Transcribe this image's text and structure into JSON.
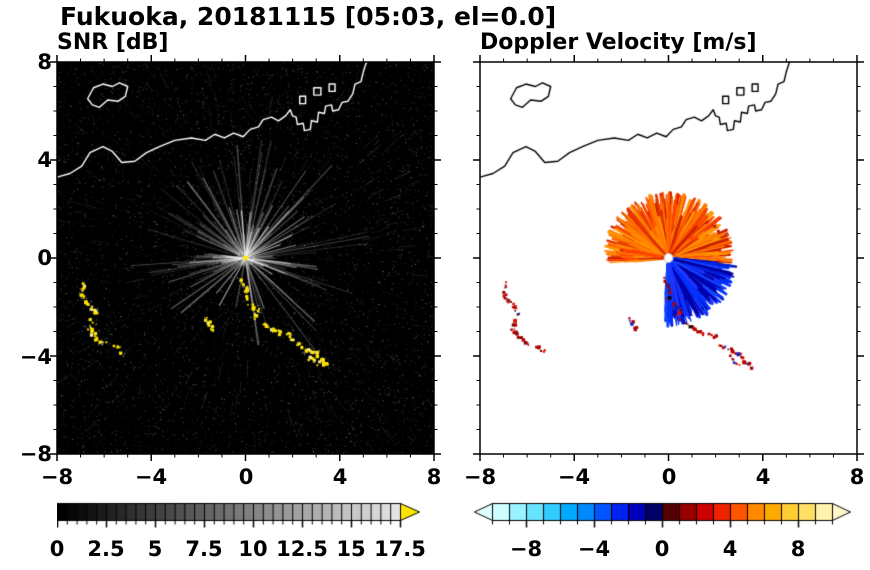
{
  "header": {
    "title": "Fukuoka, 20181115 [05:03, el=0.0]"
  },
  "chart_data": {
    "type": "heatmap",
    "description": "Dual-panel Doppler weather radar PPI display; radar located at origin (0,0); distances in km east/north of radar",
    "x_range_km": [
      -8,
      8
    ],
    "y_range_km": [
      -8,
      8
    ],
    "panels": [
      {
        "title": "SNR [dB]",
        "background": "#000000",
        "coast_color": "#ffffff",
        "xtick_labels": [
          "−8",
          "−4",
          "0",
          "4",
          "8"
        ],
        "ytick_labels": [
          "8",
          "4",
          "0",
          "−4",
          "−8"
        ],
        "colorbar": {
          "min": 0,
          "max": 17.5,
          "tick_labels": [
            "0",
            "2.5",
            "5",
            "7.5",
            "10",
            "12.5",
            "15",
            "17.5"
          ],
          "style": "grayscale",
          "over_arrow_color": "#ffe400"
        },
        "features": {
          "noise_speckle": {
            "count": 9000,
            "max_alpha": 0.5
          },
          "radial_rays": {
            "center": [
              0,
              0
            ],
            "count": 130,
            "min_len_km": 1.0,
            "max_len_km": 5.4,
            "color": "#ffffff"
          },
          "center_dot_color": "#ffe400",
          "echo_color": "#ffe400",
          "echo_fringe_color": "#dcdcdc"
        }
      },
      {
        "title": "Doppler Velocity [m/s]",
        "background": "#ffffff",
        "coast_color": "#000000",
        "xtick_labels": [
          "−8",
          "−4",
          "0",
          "4",
          "8"
        ],
        "ytick_labels": [],
        "colorbar": {
          "min": -10,
          "max": 10,
          "tick_labels": [
            "−8",
            "−4",
            "0",
            "4",
            "8"
          ],
          "style": "doppler",
          "colors": [
            "#ccffff",
            "#99f2ff",
            "#66e4ff",
            "#33ccff",
            "#00aaff",
            "#0088ff",
            "#0055ff",
            "#0022ee",
            "#0000bb",
            "#000066",
            "#550000",
            "#990000",
            "#cc0000",
            "#ee2200",
            "#ff5500",
            "#ff8800",
            "#ffaa00",
            "#ffcc33",
            "#ffe066",
            "#fff2aa"
          ],
          "under_arrow_color": "#e0ffff",
          "over_arrow_color": "#fff7cc"
        },
        "features": {
          "away_fan": {
            "center": [
              0,
              0
            ],
            "angle_deg": [
              -5,
              185
            ],
            "max_len_km": 2.8,
            "colors": [
              "#ff4400",
              "#ff6600",
              "#ff8800",
              "#ff9900",
              "#e63200",
              "#ff7700",
              "#cc2200"
            ]
          },
          "toward_fan": {
            "center": [
              0,
              0
            ],
            "angle_deg": [
              -95,
              -5
            ],
            "max_len_km": 2.9,
            "colors": [
              "#0033ff",
              "#0022dd",
              "#0000bb",
              "#1144ff",
              "#000099",
              "#2233ff"
            ]
          },
          "center_dot_color": "#ffffff",
          "echo_colors": [
            "#b00000",
            "#e01100",
            "#8a0000",
            "#0022cc",
            "#1a0000"
          ],
          "specks_km": [
            [
              1.9,
              1.35
            ],
            [
              2.05,
              1.15
            ]
          ]
        }
      }
    ],
    "coastlines_km": [
      {
        "closed": false,
        "points": [
          [
            -8,
            3.3
          ],
          [
            -7.45,
            3.45
          ],
          [
            -6.95,
            3.75
          ],
          [
            -6.6,
            4.3
          ],
          [
            -6.05,
            4.55
          ],
          [
            -5.65,
            4.35
          ],
          [
            -5.25,
            3.9
          ],
          [
            -4.7,
            3.95
          ],
          [
            -4.2,
            4.3
          ],
          [
            -3.65,
            4.55
          ],
          [
            -3.0,
            4.8
          ],
          [
            -2.3,
            4.9
          ],
          [
            -1.7,
            4.8
          ],
          [
            -1.3,
            5.05
          ],
          [
            -0.9,
            4.9
          ],
          [
            -0.5,
            5.1
          ],
          [
            -0.1,
            4.95
          ],
          [
            0.2,
            5.25
          ],
          [
            0.55,
            5.35
          ],
          [
            0.75,
            5.65
          ],
          [
            1.1,
            5.75
          ],
          [
            1.4,
            5.6
          ],
          [
            1.7,
            5.8
          ],
          [
            1.9,
            6.05
          ],
          [
            2.0,
            5.8
          ],
          [
            2.15,
            5.75
          ],
          [
            2.2,
            5.45
          ],
          [
            2.45,
            5.5
          ],
          [
            2.5,
            5.2
          ],
          [
            2.75,
            5.25
          ],
          [
            2.8,
            5.6
          ],
          [
            3.05,
            5.55
          ],
          [
            3.1,
            5.95
          ],
          [
            3.35,
            5.9
          ],
          [
            3.4,
            6.2
          ],
          [
            3.65,
            6.25
          ],
          [
            3.7,
            6.0
          ],
          [
            3.95,
            6.05
          ],
          [
            4.1,
            6.35
          ],
          [
            4.35,
            6.4
          ],
          [
            4.55,
            6.7
          ],
          [
            4.65,
            7.1
          ],
          [
            4.9,
            7.2
          ],
          [
            5.0,
            7.6
          ],
          [
            5.15,
            8.05
          ]
        ]
      },
      {
        "closed": true,
        "points": [
          [
            -6.7,
            6.5
          ],
          [
            -6.45,
            6.95
          ],
          [
            -6.05,
            7.1
          ],
          [
            -5.65,
            7.0
          ],
          [
            -5.35,
            7.15
          ],
          [
            -5.0,
            7.0
          ],
          [
            -5.1,
            6.6
          ],
          [
            -5.4,
            6.4
          ],
          [
            -5.85,
            6.45
          ],
          [
            -6.2,
            6.15
          ],
          [
            -6.5,
            6.25
          ]
        ]
      },
      {
        "closed": true,
        "points": [
          [
            2.3,
            6.3
          ],
          [
            2.55,
            6.3
          ],
          [
            2.55,
            6.6
          ],
          [
            2.3,
            6.6
          ]
        ]
      },
      {
        "closed": true,
        "points": [
          [
            2.9,
            6.65
          ],
          [
            3.2,
            6.65
          ],
          [
            3.2,
            6.95
          ],
          [
            2.9,
            6.95
          ]
        ]
      },
      {
        "closed": true,
        "points": [
          [
            3.55,
            6.8
          ],
          [
            3.8,
            6.8
          ],
          [
            3.8,
            7.1
          ],
          [
            3.55,
            7.1
          ]
        ]
      }
    ],
    "echo_clusters_km": [
      [
        [
          -6.95,
          -1.0
        ],
        [
          -7.0,
          -1.4
        ],
        [
          -6.8,
          -1.75
        ],
        [
          -6.5,
          -2.05
        ],
        [
          -6.45,
          -2.25
        ]
      ],
      [
        [
          -6.6,
          -2.5
        ],
        [
          -6.65,
          -2.9
        ],
        [
          -6.35,
          -3.25
        ],
        [
          -6.0,
          -3.45
        ]
      ],
      [
        [
          -5.6,
          -3.5
        ],
        [
          -5.3,
          -3.8
        ]
      ],
      [
        [
          -1.75,
          -2.4
        ],
        [
          -1.4,
          -2.85
        ]
      ],
      [
        [
          -0.3,
          -0.85
        ],
        [
          0.0,
          -1.2
        ],
        [
          -0.05,
          -1.6
        ]
      ],
      [
        [
          0.15,
          -1.8
        ],
        [
          0.45,
          -2.1
        ],
        [
          0.4,
          -2.45
        ]
      ],
      [
        [
          0.7,
          -2.6
        ],
        [
          1.05,
          -2.85
        ],
        [
          1.45,
          -3.05
        ]
      ],
      [
        [
          1.7,
          -3.0
        ],
        [
          2.0,
          -3.25
        ]
      ],
      [
        [
          2.2,
          -3.45
        ],
        [
          2.55,
          -3.7
        ],
        [
          2.9,
          -3.85
        ],
        [
          3.15,
          -4.1
        ],
        [
          3.45,
          -4.35
        ]
      ],
      [
        [
          2.6,
          -4.0
        ],
        [
          2.95,
          -4.3
        ]
      ]
    ]
  }
}
